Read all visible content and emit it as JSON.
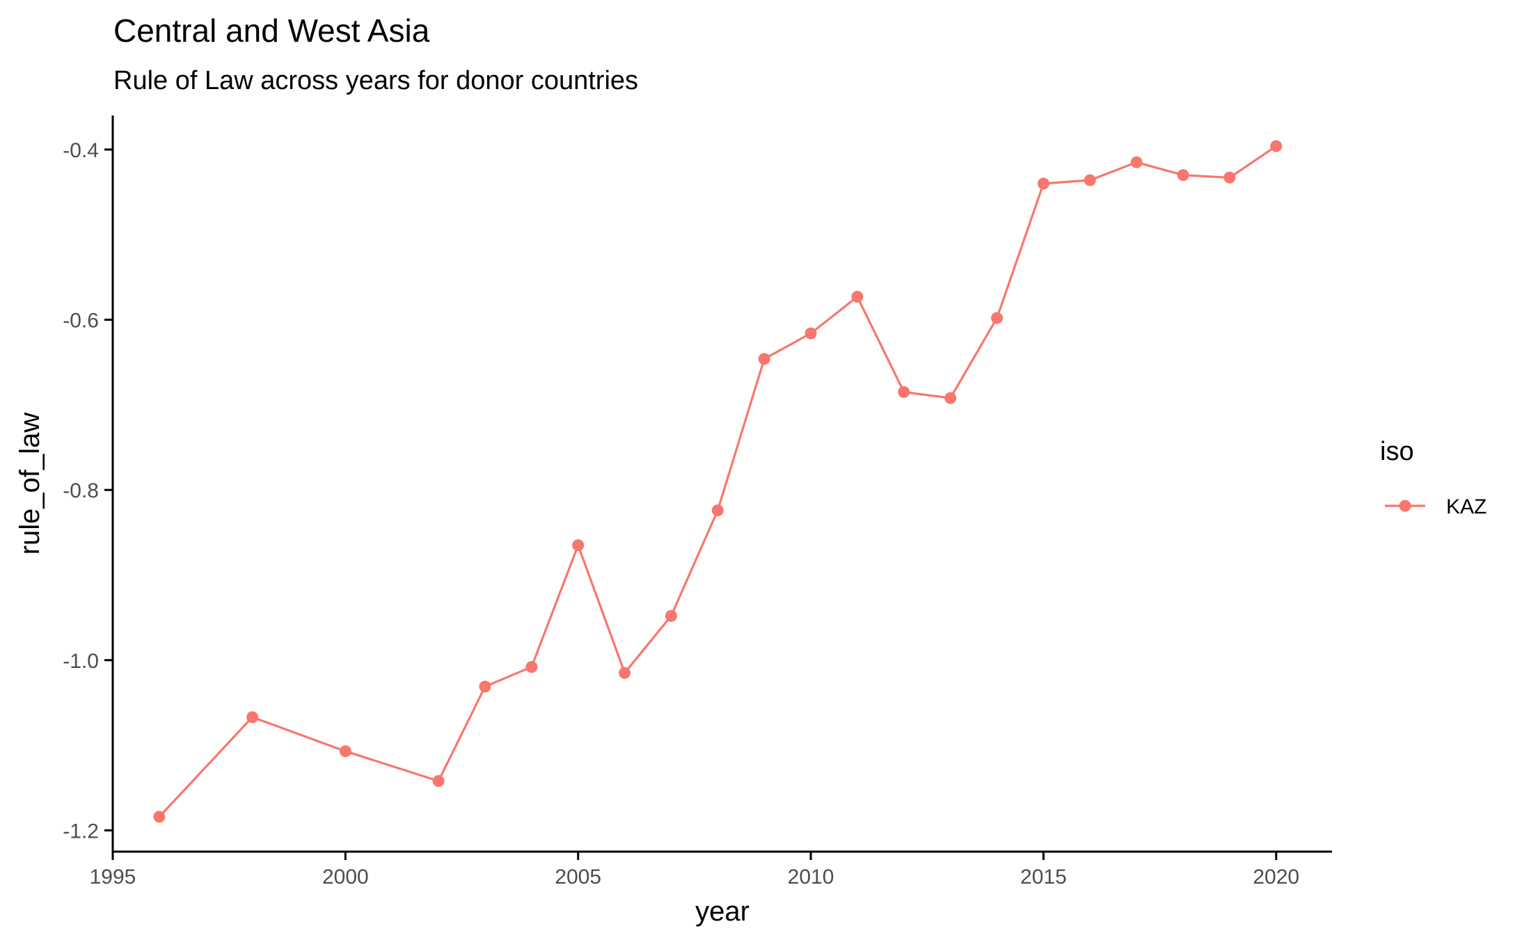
{
  "chart_data": {
    "type": "line",
    "title": "Central and West Asia",
    "subtitle": "Rule of Law across years for donor countries",
    "xlabel": "year",
    "ylabel": "rule_of_law",
    "xlim": [
      1995,
      2021.2
    ],
    "ylim": [
      -1.225,
      -0.36
    ],
    "x_ticks": [
      1995,
      2000,
      2005,
      2010,
      2015,
      2020
    ],
    "y_ticks": [
      -1.2,
      -1.0,
      -0.8,
      -0.6,
      -0.4
    ],
    "x_tick_labels": [
      "1995",
      "2000",
      "2005",
      "2010",
      "2015",
      "2020"
    ],
    "y_tick_labels": [
      "-1.2",
      "-1.0",
      "-0.8",
      "-0.6",
      "-0.4"
    ],
    "grid": false,
    "legend": {
      "title": "iso",
      "position": "right"
    },
    "x": [
      1996,
      1998,
      2000,
      2002,
      2003,
      2004,
      2005,
      2006,
      2007,
      2008,
      2009,
      2010,
      2011,
      2012,
      2013,
      2014,
      2015,
      2016,
      2017,
      2018,
      2019,
      2020
    ],
    "series": [
      {
        "name": "KAZ",
        "color": "#F8766D",
        "values": [
          -1.184,
          -1.067,
          -1.107,
          -1.142,
          -1.031,
          -1.008,
          -0.865,
          -1.015,
          -0.948,
          -0.824,
          -0.646,
          -0.616,
          -0.573,
          -0.685,
          -0.692,
          -0.598,
          -0.44,
          -0.436,
          -0.415,
          -0.43,
          -0.433,
          -0.396
        ]
      }
    ]
  }
}
